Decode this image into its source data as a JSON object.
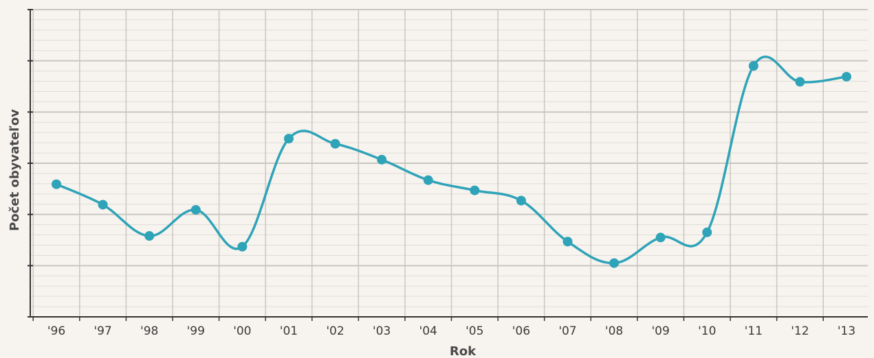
{
  "chart_data": {
    "type": "line",
    "title": "",
    "xlabel": "Rok",
    "ylabel": "Počet obyvateľov",
    "categories": [
      "'96",
      "'97",
      "'98",
      "'99",
      "'00",
      "'01",
      "'02",
      "'03",
      "'04",
      "'05",
      "'06",
      "'07",
      "'08",
      "'09",
      "'10",
      "'11",
      "'12",
      "'13"
    ],
    "series": [
      {
        "values": [
          2.59,
          2.19,
          1.58,
          2.09,
          1.37,
          3.48,
          3.38,
          3.07,
          2.67,
          2.47,
          2.27,
          1.47,
          1.05,
          1.55,
          1.65,
          4.9,
          4.59,
          4.69
        ]
      }
    ],
    "ylim": [
      0,
      6
    ],
    "yticks": [
      0,
      1,
      2,
      3,
      4,
      5,
      6
    ],
    "ytick_labels_shown": false,
    "grid": true,
    "colors": {
      "line": "#2fa3b8",
      "marker": "#2fa3b8",
      "major_grid": "#c9c6c0",
      "minor_grid": "#dedbd6",
      "axis": "#333333",
      "background": "#f7f4ef"
    }
  }
}
